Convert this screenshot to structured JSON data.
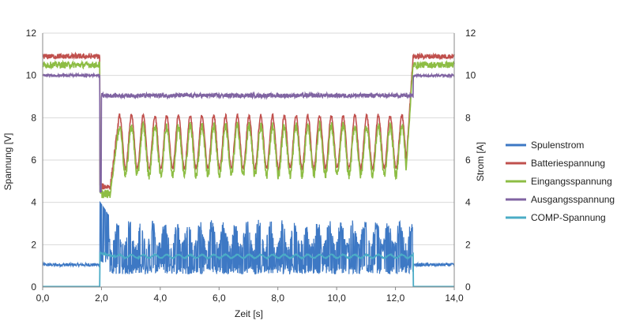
{
  "chart_data": {
    "type": "line",
    "title": "",
    "xlabel": "Zeit [s]",
    "ylabel_left": "Spannung [V]",
    "ylabel_right": "Strom [A]",
    "xlim": [
      0,
      14
    ],
    "ylim_left": [
      0,
      12
    ],
    "ylim_right": [
      0,
      12
    ],
    "x_ticks": [
      "0,0",
      "2,0",
      "4,0",
      "6,0",
      "8,0",
      "10,0",
      "12,0",
      "14,0"
    ],
    "y_ticks_left": [
      "0",
      "2",
      "4",
      "6",
      "8",
      "10",
      "12"
    ],
    "y_ticks_right": [
      "0",
      "2",
      "4",
      "6",
      "8",
      "10",
      "12"
    ],
    "grid": "horizontal",
    "legend_position": "right",
    "series": [
      {
        "name": "Spulenstrom",
        "axis": "right",
        "color": "#3d78c4",
        "pre_level": 1.05,
        "transition_start": 1.95,
        "transition_end": 12.6,
        "active_peak_max": 3.3,
        "active_peak_min": 0.6,
        "spike": 4.0,
        "post_level": 1.05
      },
      {
        "name": "Batteriespannung",
        "axis": "left",
        "color": "#c0504d",
        "pre_level": 10.9,
        "active_max": 8.1,
        "active_min": 5.6,
        "dip": 4.75,
        "post_level": 10.9
      },
      {
        "name": "Eingangsspannung",
        "axis": "left",
        "color": "#8dbd44",
        "pre_level": 10.5,
        "active_max": 7.6,
        "active_min": 5.3,
        "dip": 4.4,
        "post_level": 10.5
      },
      {
        "name": "Ausgangsspannung",
        "axis": "left",
        "color": "#8064a2",
        "pre_level": 10.0,
        "active_level": 9.05,
        "post_level": 10.0
      },
      {
        "name": "COMP-Spannung",
        "axis": "left",
        "color": "#4bacc6",
        "pre_level": 0.0,
        "active_level": 1.45,
        "post_level": 0.0
      }
    ]
  }
}
